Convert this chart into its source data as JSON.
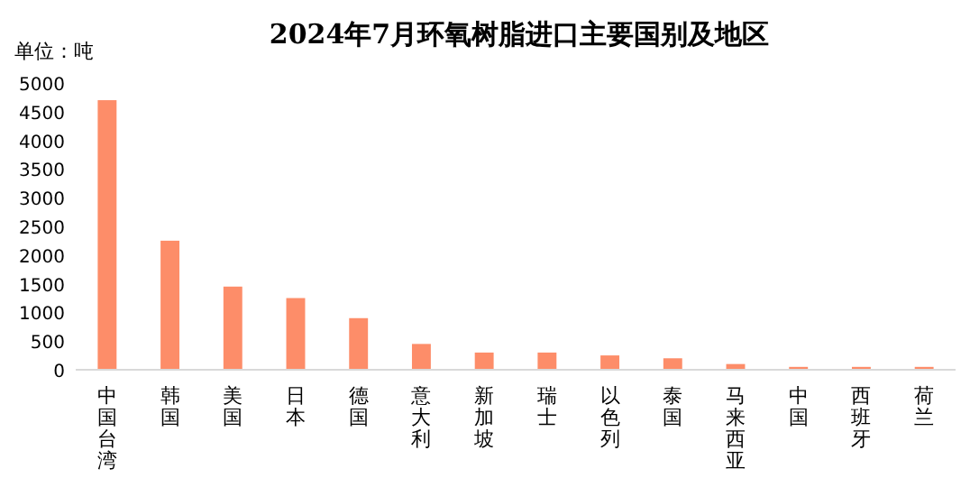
{
  "chart_data": {
    "type": "bar",
    "title": "2024年7月环氧树脂进口主要国别及地区",
    "ylabel": "单位：吨",
    "categories": [
      "中国台湾",
      "韩国",
      "美国",
      "日本",
      "德国",
      "意大利",
      "新加坡",
      "瑞士",
      "以色列",
      "泰国",
      "马来西亚",
      "中国",
      "西班牙",
      "荷兰"
    ],
    "values": [
      4700,
      2250,
      1450,
      1250,
      900,
      450,
      300,
      300,
      250,
      200,
      100,
      50,
      50,
      50
    ],
    "color": "#fd8d69",
    "ylim": [
      0,
      5000
    ],
    "yticks": [
      0,
      500,
      1000,
      1500,
      2000,
      2500,
      3000,
      3500,
      4000,
      4500,
      5000
    ],
    "grid": false
  }
}
